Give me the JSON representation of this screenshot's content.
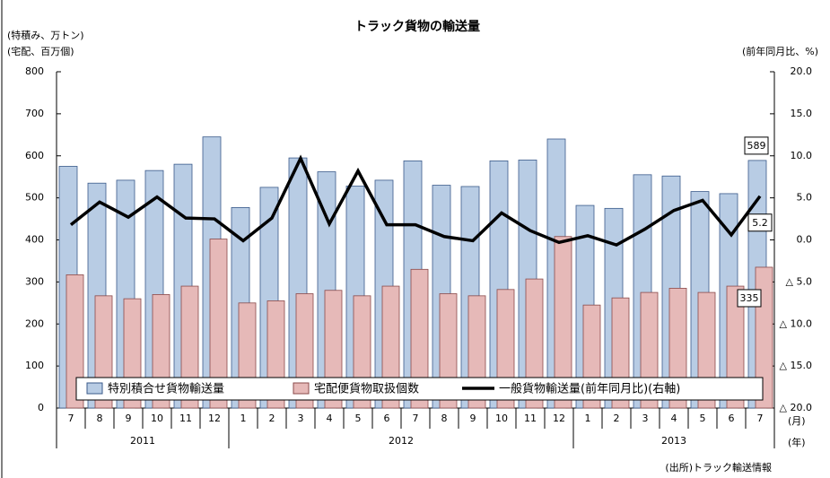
{
  "chart_data": {
    "type": "bar-line",
    "title": "トラック貨物の輸送量",
    "y_label_lines": [
      "(特積み、万トン)",
      "(宅配、百万個)"
    ],
    "y2_label": "(前年同月比、%)",
    "x_unit_label": "(月)",
    "year_unit_label": "(年)",
    "source": "(出所)トラック輸送情報",
    "categories": [
      "7",
      "8",
      "9",
      "10",
      "11",
      "12",
      "1",
      "2",
      "3",
      "4",
      "5",
      "6",
      "7",
      "8",
      "9",
      "10",
      "11",
      "12",
      "1",
      "2",
      "3",
      "4",
      "5",
      "6",
      "7"
    ],
    "years": [
      "2011",
      "2012",
      "2013"
    ],
    "series": [
      {
        "name": "特別積合せ貨物輸送量",
        "type": "bar",
        "color": "#b8cce4",
        "stroke": "#3a5a8a",
        "values": [
          575,
          535,
          542,
          565,
          580,
          645,
          477,
          525,
          595,
          562,
          528,
          542,
          588,
          530,
          527,
          588,
          590,
          640,
          482,
          475,
          555,
          552,
          515,
          510,
          589
        ]
      },
      {
        "name": "宅配便貨物取扱個数",
        "type": "bar",
        "color": "#e6b9b8",
        "stroke": "#8a4a4a",
        "values": [
          317,
          267,
          260,
          270,
          290,
          402,
          250,
          255,
          272,
          280,
          267,
          290,
          330,
          272,
          267,
          282,
          307,
          408,
          245,
          262,
          275,
          285,
          275,
          290,
          335
        ]
      },
      {
        "name": "一般貨物輸送量(前年同月比)(右軸)",
        "type": "line",
        "color": "#000000",
        "axis": "y2",
        "values": [
          1.8,
          4.5,
          2.7,
          5.1,
          2.6,
          2.5,
          -0.1,
          2.6,
          9.7,
          1.9,
          8.2,
          1.8,
          1.8,
          0.4,
          -0.1,
          3.2,
          1.1,
          -0.3,
          0.5,
          -0.6,
          1.3,
          3.5,
          4.7,
          0.6,
          5.2
        ]
      }
    ],
    "labeled_points": [
      [
        0,
        24
      ],
      [
        2,
        24
      ],
      [
        1,
        24
      ]
    ],
    "ylim": [
      0,
      800
    ],
    "yticks": [
      0,
      100,
      200,
      300,
      400,
      500,
      600,
      700,
      800
    ],
    "y2lim": [
      -20,
      20
    ],
    "y2ticks": [
      {
        "value": 20,
        "label": "20.0"
      },
      {
        "value": 15,
        "label": "15.0"
      },
      {
        "value": 10,
        "label": "10.0"
      },
      {
        "value": 5,
        "label": "5.0"
      },
      {
        "value": 0,
        "label": "0.0"
      },
      {
        "value": -5,
        "label": "△ 5.0"
      },
      {
        "value": -10,
        "label": "△ 10.0"
      },
      {
        "value": -15,
        "label": "△ 15.0"
      },
      {
        "value": -20,
        "label": "△ 20.0"
      }
    ],
    "grid": false,
    "legend": "bottom"
  }
}
